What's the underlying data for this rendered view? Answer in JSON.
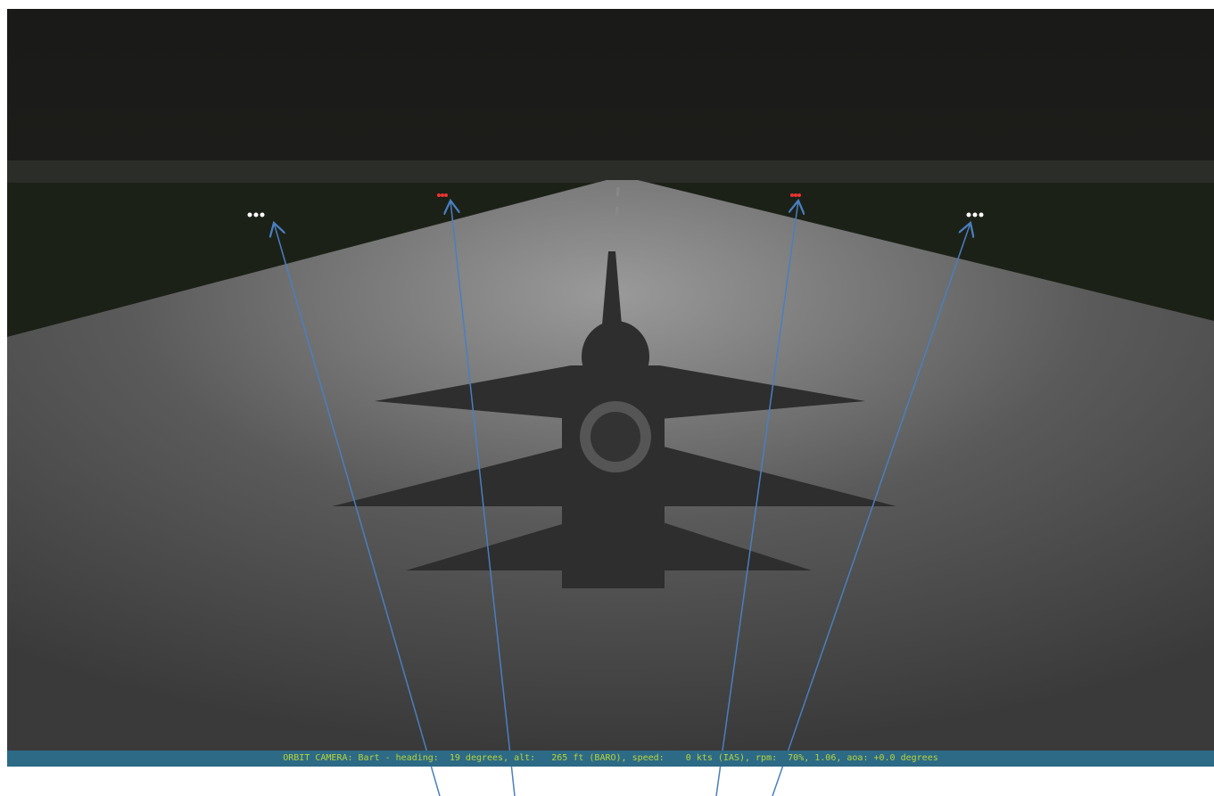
{
  "status_bar": {
    "text": "ORBIT CAMERA: Bart - heading:  19 degrees, alt:   265 ft (BARO), speed:    0 kts (IAS), rpm:  70%, 1.06, aoa: +0.0 degrees"
  }
}
